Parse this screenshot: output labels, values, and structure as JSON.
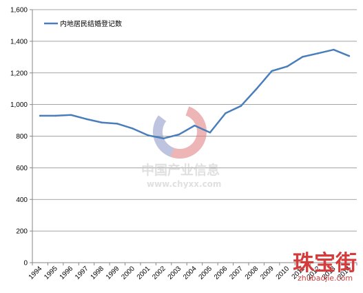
{
  "chart_data": {
    "type": "line",
    "categories": [
      "1994",
      "1995",
      "1996",
      "1997",
      "1998",
      "1999",
      "2000",
      "2001",
      "2002",
      "2003",
      "2004",
      "2005",
      "2006",
      "2007",
      "2008",
      "2009",
      "2010",
      "2011",
      "2012",
      "2013",
      "2014"
    ],
    "series": [
      {
        "name": "内地居民结婚登记数",
        "color": "#4a7ebb",
        "values": [
          929,
          929,
          934,
          908,
          886,
          879,
          848,
          805,
          786,
          811,
          867,
          823,
          945,
          991,
          1098,
          1212,
          1241,
          1302,
          1324,
          1347,
          1307
        ]
      }
    ],
    "ylim": [
      0,
      1600
    ],
    "yticks": [
      0,
      200,
      400,
      600,
      800,
      1000,
      1200,
      1400,
      1600
    ],
    "ytick_labels": [
      "0",
      "200",
      "400",
      "600",
      "800",
      "1,000",
      "1,200",
      "1,400",
      "1,600"
    ],
    "grid": true,
    "legend_position": "top-left",
    "title": "",
    "xlabel": "",
    "ylabel": ""
  },
  "watermark": {
    "name_cn": "中国产业信息",
    "url": "www.chyxx.com"
  },
  "stamp": {
    "text": "珠宝街",
    "subtext": "zhubaojie.com"
  }
}
